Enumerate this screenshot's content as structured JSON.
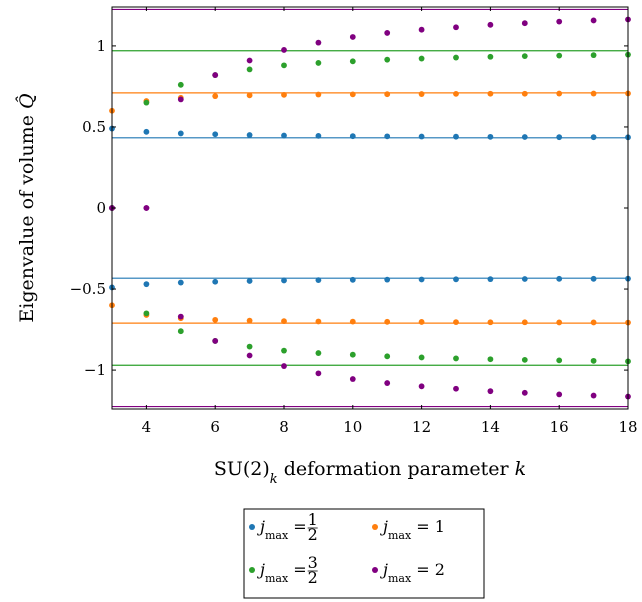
{
  "chart_data": {
    "type": "scatter",
    "title": "",
    "xlabel": "SU(2)_k deformation parameter k",
    "ylabel": "Eigenvalue of volume Q̂",
    "xlim": [
      3,
      18
    ],
    "ylim": [
      -1.24,
      1.24
    ],
    "xticks": [
      4,
      6,
      8,
      10,
      12,
      14,
      16,
      18
    ],
    "xtick_labels": [
      "4",
      "6",
      "8",
      "10",
      "12",
      "14",
      "16",
      "18"
    ],
    "yticks": [
      -1,
      -0.5,
      0,
      0.5,
      1
    ],
    "ytick_labels": [
      "−1",
      "−0.5",
      "0",
      "0.5",
      "1"
    ],
    "grid": false,
    "legend_position": "below",
    "x": [
      3,
      4,
      5,
      6,
      7,
      8,
      9,
      10,
      11,
      12,
      13,
      14,
      15,
      16,
      17,
      18
    ],
    "series": [
      {
        "name": "j_max = 1/2",
        "color": "#1f77b4",
        "asymptote": 0.433,
        "values": [
          0.49,
          0.47,
          0.46,
          0.455,
          0.45,
          0.447,
          0.445,
          0.443,
          0.442,
          0.441,
          0.44,
          0.439,
          0.438,
          0.437,
          0.437,
          0.436
        ]
      },
      {
        "name": "j_max = 1",
        "color": "#ff7f0e",
        "asymptote": 0.71,
        "values": [
          0.6,
          0.66,
          0.68,
          0.69,
          0.695,
          0.698,
          0.7,
          0.701,
          0.702,
          0.703,
          0.704,
          0.705,
          0.705,
          0.706,
          0.706,
          0.707
        ]
      },
      {
        "name": "j_max = 3/2",
        "color": "#2ca02c",
        "asymptote": 0.97,
        "values": [
          0.0,
          0.65,
          0.76,
          0.82,
          0.855,
          0.88,
          0.895,
          0.905,
          0.915,
          0.922,
          0.928,
          0.933,
          0.937,
          0.94,
          0.943,
          0.946
        ]
      },
      {
        "name": "j_max = 2",
        "color": "#800080",
        "asymptote": 1.225,
        "values": [
          0.0,
          0.0,
          0.67,
          0.82,
          0.91,
          0.975,
          1.02,
          1.055,
          1.08,
          1.1,
          1.115,
          1.13,
          1.14,
          1.15,
          1.157,
          1.163
        ]
      }
    ],
    "legend": [
      {
        "label": "j_max = 1/2",
        "color": "#1f77b4"
      },
      {
        "label": "j_max = 1",
        "color": "#ff7f0e"
      },
      {
        "label": "j_max = 3/2",
        "color": "#2ca02c"
      },
      {
        "label": "j_max = 2",
        "color": "#800080"
      }
    ]
  }
}
